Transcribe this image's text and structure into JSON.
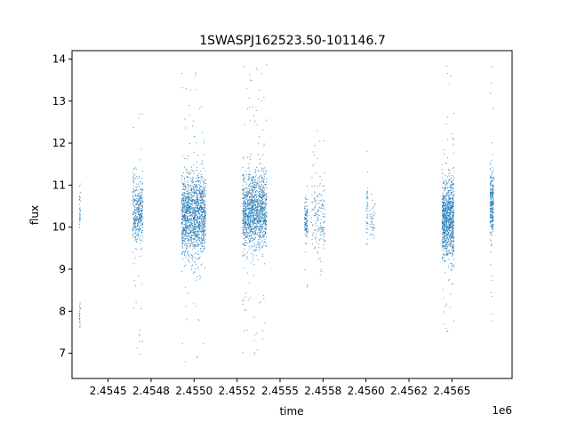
{
  "chart_data": {
    "type": "scatter",
    "title": "1SWASPJ162523.50-101146.7",
    "xlabel": "time",
    "ylabel": "flux",
    "x_offset_label": "1e6",
    "xlim": [
      2454290,
      2456850
    ],
    "ylim": [
      6.4,
      14.2
    ],
    "x_ticks": [
      2454500,
      2454750,
      2455000,
      2455250,
      2455500,
      2455750,
      2456000,
      2456250,
      2456500
    ],
    "x_tick_labels": [
      "2.4545",
      "2.4548",
      "2.4550",
      "2.4552",
      "2.4555",
      "2.4558",
      "2.4560",
      "2.4562",
      "2.4565"
    ],
    "y_ticks": [
      7,
      8,
      9,
      10,
      11,
      12,
      13,
      14
    ],
    "y_tick_labels": [
      "7",
      "8",
      "9",
      "10",
      "11",
      "12",
      "13",
      "14"
    ],
    "grid": false,
    "marker_color": "#1f77b4",
    "clusters": [
      {
        "x_start": 2454330,
        "x_end": 2454336,
        "y_center": 10.4,
        "y_spread": 0.5,
        "y_min": 9.9,
        "y_max": 11.1,
        "count": 30
      },
      {
        "x_start": 2454330,
        "x_end": 2454336,
        "y_center": 7.9,
        "y_spread": 0.3,
        "y_min": 7.3,
        "y_max": 8.3,
        "count": 20
      },
      {
        "x_start": 2454640,
        "x_end": 2454700,
        "y_center": 10.4,
        "y_spread": 0.7,
        "y_min": 6.9,
        "y_max": 13.3,
        "count": 420
      },
      {
        "x_start": 2454925,
        "x_end": 2455065,
        "y_center": 10.3,
        "y_spread": 0.8,
        "y_min": 6.8,
        "y_max": 13.9,
        "count": 1500
      },
      {
        "x_start": 2455280,
        "x_end": 2455420,
        "y_center": 10.4,
        "y_spread": 0.75,
        "y_min": 6.8,
        "y_max": 13.9,
        "count": 1400
      },
      {
        "x_start": 2455640,
        "x_end": 2455660,
        "y_center": 10.2,
        "y_spread": 0.4,
        "y_min": 8.0,
        "y_max": 11.0,
        "count": 110
      },
      {
        "x_start": 2455680,
        "x_end": 2455760,
        "y_center": 10.3,
        "y_spread": 0.8,
        "y_min": 8.8,
        "y_max": 12.5,
        "count": 170
      },
      {
        "x_start": 2456000,
        "x_end": 2456010,
        "y_center": 10.4,
        "y_spread": 0.7,
        "y_min": 9.5,
        "y_max": 11.9,
        "count": 40
      },
      {
        "x_start": 2456020,
        "x_end": 2456050,
        "y_center": 10.1,
        "y_spread": 0.4,
        "y_min": 9.3,
        "y_max": 10.8,
        "count": 40
      },
      {
        "x_start": 2456440,
        "x_end": 2456510,
        "y_center": 10.2,
        "y_spread": 0.8,
        "y_min": 7.4,
        "y_max": 13.9,
        "count": 1000
      },
      {
        "x_start": 2456720,
        "x_end": 2456740,
        "y_center": 10.6,
        "y_spread": 0.6,
        "y_min": 6.8,
        "y_max": 13.9,
        "count": 280
      }
    ]
  }
}
